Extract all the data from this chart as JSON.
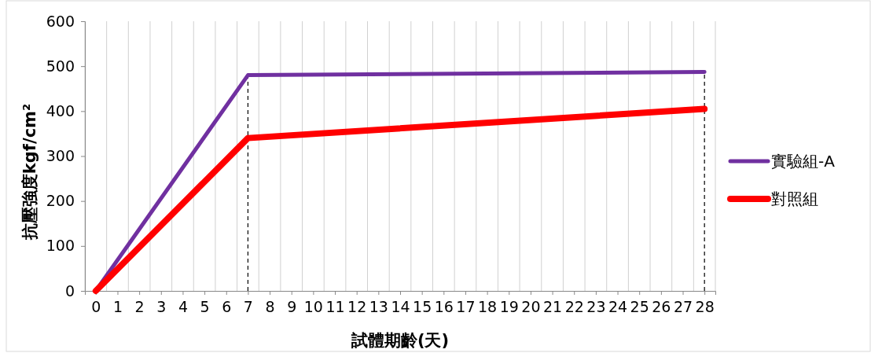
{
  "chart_data": {
    "type": "line",
    "xlabel": "試體期齡(天)",
    "ylabel": "抗壓強度kgf/cm²",
    "xlim": [
      -0.5,
      28.5
    ],
    "xticks": [
      0,
      1,
      2,
      3,
      4,
      5,
      6,
      7,
      8,
      9,
      10,
      11,
      12,
      13,
      14,
      15,
      16,
      17,
      18,
      19,
      20,
      21,
      22,
      23,
      24,
      25,
      26,
      27,
      28
    ],
    "ylim": [
      0,
      600
    ],
    "yticks": [
      0,
      100,
      200,
      300,
      400,
      500,
      600
    ],
    "grid": "x",
    "legend": "right",
    "marker": "none",
    "line_style": "solid",
    "series": [
      {
        "name": "實驗組-A",
        "color": "#7030a0",
        "x": [
          0,
          7,
          28
        ],
        "values": [
          0,
          480,
          487
        ]
      },
      {
        "name": "對照組",
        "color": "#ff0000",
        "x": [
          0,
          7,
          28
        ],
        "values": [
          0,
          340,
          405
        ]
      }
    ],
    "ref_lines": [
      {
        "axis": "x",
        "value": 7,
        "color": "#000000",
        "line_style": "dashed"
      },
      {
        "axis": "x",
        "value": 28,
        "color": "#000000",
        "line_style": "dashed"
      }
    ]
  }
}
